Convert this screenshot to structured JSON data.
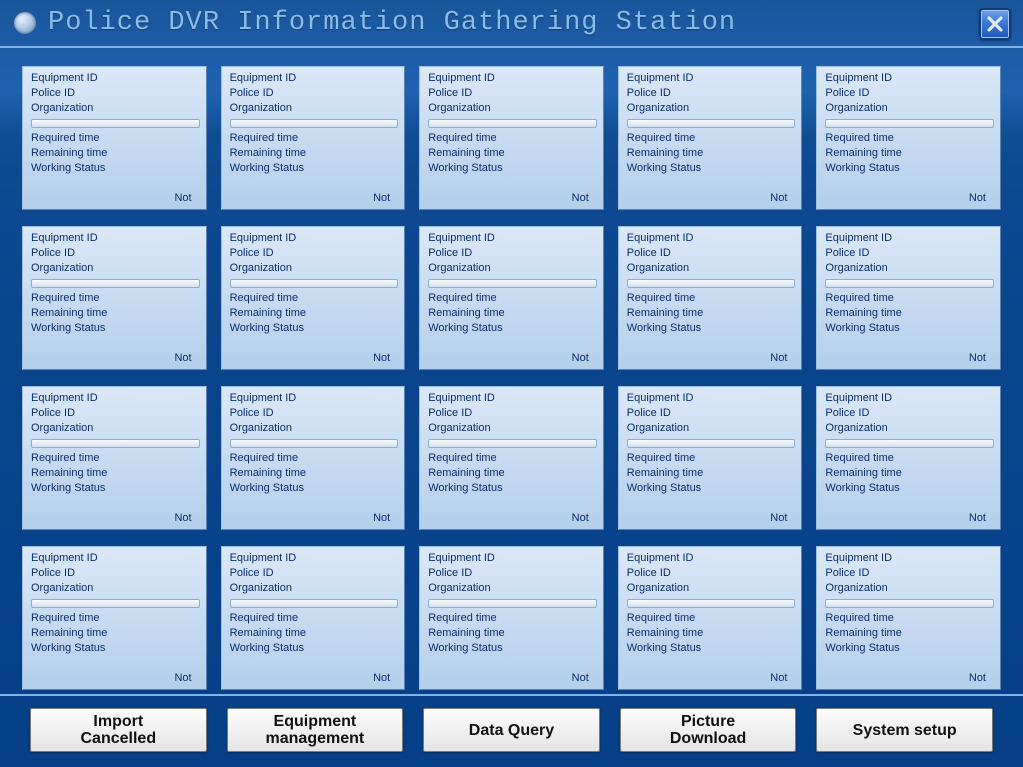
{
  "header": {
    "title": "Police DVR Information Gathering Station"
  },
  "labels": {
    "equipment_id": "Equipment ID",
    "police_id": "Police ID",
    "organization": "Organization",
    "required_time": "Required time",
    "remaining_time": "Remaining time",
    "working_status": "Working Status"
  },
  "cards": [
    {
      "equipment_id": "",
      "police_id": "",
      "organization": "",
      "required_time": "",
      "remaining_time": "",
      "working_status": "Not"
    },
    {
      "equipment_id": "",
      "police_id": "",
      "organization": "",
      "required_time": "",
      "remaining_time": "",
      "working_status": "Not"
    },
    {
      "equipment_id": "",
      "police_id": "",
      "organization": "",
      "required_time": "",
      "remaining_time": "",
      "working_status": "Not"
    },
    {
      "equipment_id": "",
      "police_id": "",
      "organization": "",
      "required_time": "",
      "remaining_time": "",
      "working_status": "Not"
    },
    {
      "equipment_id": "",
      "police_id": "",
      "organization": "",
      "required_time": "",
      "remaining_time": "",
      "working_status": "Not"
    },
    {
      "equipment_id": "",
      "police_id": "",
      "organization": "",
      "required_time": "",
      "remaining_time": "",
      "working_status": "Not"
    },
    {
      "equipment_id": "",
      "police_id": "",
      "organization": "",
      "required_time": "",
      "remaining_time": "",
      "working_status": "Not"
    },
    {
      "equipment_id": "",
      "police_id": "",
      "organization": "",
      "required_time": "",
      "remaining_time": "",
      "working_status": "Not"
    },
    {
      "equipment_id": "",
      "police_id": "",
      "organization": "",
      "required_time": "",
      "remaining_time": "",
      "working_status": "Not"
    },
    {
      "equipment_id": "",
      "police_id": "",
      "organization": "",
      "required_time": "",
      "remaining_time": "",
      "working_status": "Not"
    },
    {
      "equipment_id": "",
      "police_id": "",
      "organization": "",
      "required_time": "",
      "remaining_time": "",
      "working_status": "Not"
    },
    {
      "equipment_id": "",
      "police_id": "",
      "organization": "",
      "required_time": "",
      "remaining_time": "",
      "working_status": "Not"
    },
    {
      "equipment_id": "",
      "police_id": "",
      "organization": "",
      "required_time": "",
      "remaining_time": "",
      "working_status": "Not"
    },
    {
      "equipment_id": "",
      "police_id": "",
      "organization": "",
      "required_time": "",
      "remaining_time": "",
      "working_status": "Not"
    },
    {
      "equipment_id": "",
      "police_id": "",
      "organization": "",
      "required_time": "",
      "remaining_time": "",
      "working_status": "Not"
    },
    {
      "equipment_id": "",
      "police_id": "",
      "organization": "",
      "required_time": "",
      "remaining_time": "",
      "working_status": "Not"
    },
    {
      "equipment_id": "",
      "police_id": "",
      "organization": "",
      "required_time": "",
      "remaining_time": "",
      "working_status": "Not"
    },
    {
      "equipment_id": "",
      "police_id": "",
      "organization": "",
      "required_time": "",
      "remaining_time": "",
      "working_status": "Not"
    },
    {
      "equipment_id": "",
      "police_id": "",
      "organization": "",
      "required_time": "",
      "remaining_time": "",
      "working_status": "Not"
    },
    {
      "equipment_id": "",
      "police_id": "",
      "organization": "",
      "required_time": "",
      "remaining_time": "",
      "working_status": "Not"
    }
  ],
  "footer": {
    "import_cancelled": "Import\nCancelled",
    "equipment_management": "Equipment\nmanagement",
    "data_query": "Data Query",
    "picture_download": "Picture\nDownload",
    "system_setup": "System setup"
  },
  "style": {
    "card_bg_top": "#dbe8f7",
    "card_bg_bottom": "#b4cfeb",
    "card_text_color": "#0a2d6c",
    "title_color": "#8abce8",
    "divider_color": "#7fb4e8",
    "button_bg_top": "#fdfdfd",
    "button_bg_bottom": "#e4e4e4"
  }
}
